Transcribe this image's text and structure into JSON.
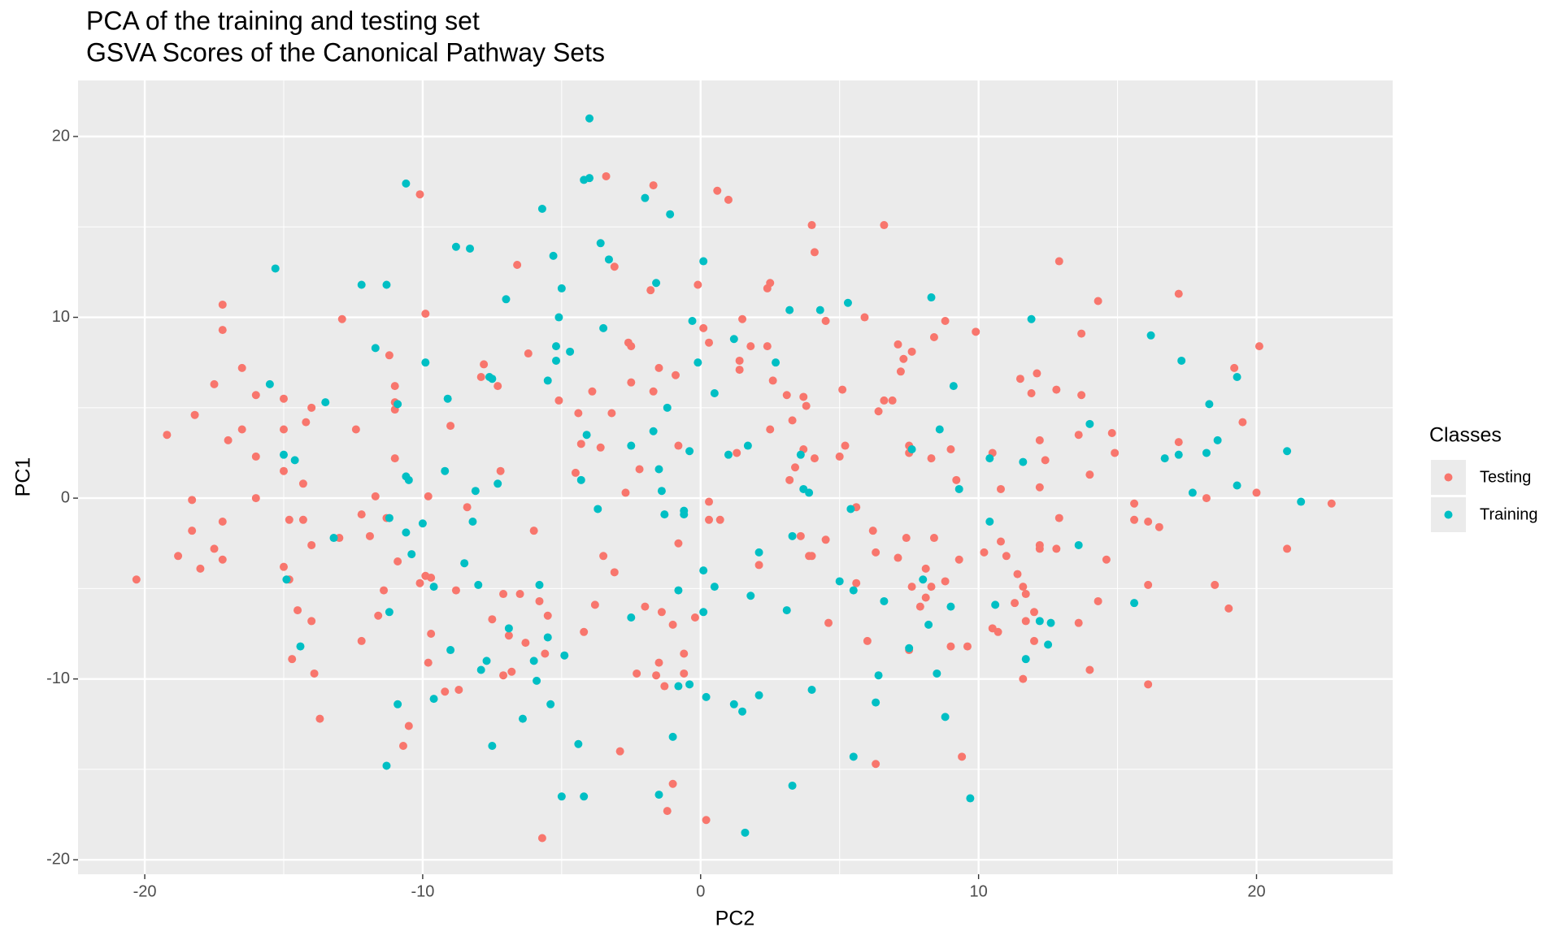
{
  "chart_data": {
    "type": "scatter",
    "title": "PCA of the training and testing set",
    "subtitle": "GSVA Scores of the Canonical Pathway Sets",
    "x_label": "PC2",
    "y_label": "PC1",
    "legend_title": "Classes",
    "legend_position": "right",
    "xlim": [
      -22.4,
      24.9
    ],
    "ylim": [
      -20.8,
      23.1
    ],
    "xticks": [
      -20,
      -10,
      0,
      10,
      20
    ],
    "yticks": [
      -20,
      -10,
      0,
      10,
      20
    ],
    "grid": true,
    "series": [
      {
        "name": "Testing",
        "color": "#F8766D",
        "x": [
          -20.3,
          -19.2,
          -18.8,
          -18.3,
          -18.3,
          -18.2,
          -18,
          -17.5,
          -17.5,
          -17.2,
          -17.2,
          -17.2,
          -17.2,
          -17,
          -16.5,
          -16.5,
          -16,
          -16,
          -16,
          -15,
          -15,
          -15,
          -15,
          -14.8,
          -14.8,
          -14.7,
          -14.5,
          -14.3,
          -14.3,
          -14.2,
          -14,
          -14,
          -14,
          -13.9,
          -13.7,
          -13,
          -12.9,
          -12.4,
          -12.2,
          -12.2,
          -11.9,
          -11.7,
          -11.6,
          -11.4,
          -11.3,
          -11.2,
          -11,
          -11,
          -11,
          -11,
          -10.9,
          -10.7,
          -10.5,
          -9.2,
          -10.1,
          -9.9,
          -9.9,
          -10.1,
          -9.8,
          -9.7,
          -9.7,
          -9.8,
          -9,
          -8.8,
          -8.7,
          -8.4,
          -7.8,
          -7.9,
          -7.5,
          -7.3,
          -7.2,
          -7.1,
          -7.1,
          -6.9,
          -6.8,
          -6.6,
          -6.5,
          -6.3,
          -6.2,
          -6,
          -5.8,
          -5.7,
          -5.6,
          -5.5,
          -5.1,
          -4.4,
          -4.5,
          -4.3,
          -4.2,
          -3.9,
          -3.8,
          -3.6,
          -3.5,
          -3.4,
          -3.2,
          -3.1,
          -3.1,
          -2.9,
          -2.7,
          -2.6,
          -2.5,
          -2.5,
          -2.3,
          -2.2,
          -2,
          -1.8,
          -1.7,
          -1.7,
          -1.6,
          -1.5,
          -1.5,
          -1.4,
          -1.3,
          -1.2,
          -1,
          -1,
          -0.9,
          -0.8,
          -0.8,
          -0.6,
          -0.6,
          -0.2,
          -0.1,
          0.1,
          0.3,
          0.3,
          0.3,
          0.2,
          0.6,
          0.7,
          1,
          1.4,
          1.4,
          1.3,
          1.5,
          1.8,
          2.1,
          2.4,
          2.4,
          2.5,
          2.5,
          2.6,
          3.1,
          3.2,
          3.3,
          3.4,
          3.6,
          3.7,
          3.7,
          3.8,
          3.9,
          4,
          4.1,
          4,
          4.1,
          4.5,
          4.5,
          4.6,
          5.1,
          5,
          5.2,
          5.6,
          5.6,
          5.9,
          6,
          6.2,
          6.3,
          6.3,
          6.4,
          6.6,
          6.6,
          6.9,
          7.1,
          7.2,
          7.3,
          7.1,
          7.4,
          7.5,
          7.5,
          7.6,
          7.6,
          7.5,
          7.9,
          8.1,
          8.1,
          8.3,
          8.3,
          8.4,
          8.4,
          8.8,
          8.8,
          9,
          9,
          9.2,
          9.3,
          9.4,
          9.6,
          9.9,
          10.2,
          10.5,
          10.5,
          10.7,
          10.8,
          10.8,
          11,
          11.3,
          11.4,
          11.5,
          11.6,
          11.6,
          11.7,
          11.7,
          11.9,
          12,
          12,
          12.1,
          12.2,
          12.2,
          12.2,
          12.2,
          12.4,
          12.8,
          12.8,
          12.9,
          12.9,
          13.6,
          13.6,
          13.7,
          13.7,
          14,
          14,
          14.3,
          14.3,
          14.6,
          14.8,
          14.9,
          15.6,
          15.6,
          16.1,
          16.1,
          16.1,
          16.5,
          17.2,
          17.2,
          18.2,
          18.5,
          19,
          19.2,
          19.5,
          20,
          20.1,
          21.1,
          22.7
        ],
        "values": [
          -4.5,
          3.5,
          -3.2,
          -0.1,
          -1.8,
          4.6,
          -3.9,
          6.3,
          -2.8,
          10.7,
          9.3,
          -1.3,
          -3.4,
          3.2,
          3.8,
          7.2,
          5.7,
          2.3,
          0,
          5.5,
          3.8,
          1.5,
          -3.8,
          -1.2,
          -4.5,
          -8.9,
          -6.2,
          0.8,
          -1.2,
          4.2,
          5,
          -2.6,
          -6.8,
          -9.7,
          -12.2,
          -2.2,
          9.9,
          3.8,
          -0.9,
          -7.9,
          -2.1,
          0.1,
          -6.5,
          -5.1,
          -1.1,
          7.9,
          6.2,
          5.3,
          4.9,
          2.2,
          -3.5,
          -13.7,
          -12.6,
          -10.7,
          16.8,
          10.2,
          -4.3,
          -4.7,
          0.1,
          -4.4,
          -7.5,
          -9.1,
          4,
          -5.1,
          -10.6,
          -0.5,
          7.4,
          6.7,
          -6.7,
          6.2,
          1.5,
          -5.3,
          -9.8,
          -7.6,
          -9.6,
          12.9,
          -5.3,
          -8,
          8,
          -1.8,
          -5.7,
          -18.8,
          -8.6,
          -6.5,
          5.4,
          4.7,
          1.4,
          3,
          -7.4,
          5.9,
          -5.9,
          2.8,
          -3.2,
          17.8,
          4.7,
          -4.1,
          12.8,
          -14,
          0.3,
          8.6,
          6.4,
          8.4,
          -9.7,
          1.6,
          -6,
          11.5,
          17.3,
          5.9,
          -9.8,
          7.2,
          -9.1,
          -6.3,
          -10.4,
          -17.3,
          -15.8,
          -7,
          6.8,
          -2.5,
          2.9,
          -8.6,
          -9.7,
          -6.6,
          11.8,
          9.4,
          8.6,
          -0.2,
          -1.2,
          -17.8,
          17,
          -1.2,
          16.5,
          7.6,
          7.1,
          2.5,
          9.9,
          8.4,
          -3.7,
          8.4,
          11.6,
          11.9,
          3.8,
          6.5,
          5.7,
          1,
          4.3,
          1.7,
          -2.1,
          2.7,
          5.6,
          5.1,
          -3.2,
          15.1,
          13.6,
          -3.2,
          2.2,
          -2.3,
          9.8,
          -6.9,
          6,
          2.3,
          2.9,
          -0.5,
          -4.7,
          10,
          -7.9,
          -1.8,
          -3,
          -14.7,
          4.8,
          5.4,
          15.1,
          5.4,
          8.5,
          7,
          7.7,
          -3.3,
          -2.2,
          2.9,
          2.5,
          8.1,
          -4.9,
          -8.4,
          -6,
          -3.9,
          -5.5,
          2.2,
          -4.9,
          8.9,
          -2.2,
          9.8,
          -4.6,
          2.7,
          -8.2,
          1,
          -3.4,
          -14.3,
          -8.2,
          9.2,
          -3,
          2.5,
          -7.2,
          -7.4,
          -2.4,
          0.5,
          -3.2,
          -5.8,
          -4.2,
          6.6,
          -4.9,
          -10,
          -5.3,
          -6.8,
          5.8,
          -7.9,
          -6.3,
          6.9,
          -2.6,
          -2.8,
          0.6,
          3.2,
          2.1,
          -2.8,
          6,
          13.1,
          -1.1,
          3.5,
          -6.9,
          5.7,
          9.1,
          1.3,
          -9.5,
          10.9,
          -5.7,
          -3.4,
          3.6,
          2.5,
          -0.3,
          -1.2,
          -1.3,
          -4.8,
          -10.3,
          -1.6,
          3.1,
          11.3,
          0,
          -4.8,
          -6.1,
          7.2,
          4.2,
          0.3,
          8.4,
          -2.8,
          -0.3
        ]
      },
      {
        "name": "Training",
        "color": "#00BFC4",
        "x": [
          -15.5,
          -15.3,
          -15,
          -14.9,
          -14.6,
          -14.4,
          -13.5,
          -13.2,
          -12.2,
          -11.7,
          -11.3,
          -11.3,
          -11.2,
          -11.2,
          -10.9,
          -10.9,
          -10.6,
          -10.6,
          -10.5,
          -10.6,
          -10.4,
          -9.9,
          -10,
          -9.6,
          -9.6,
          -9.2,
          -9.1,
          -9,
          -8.8,
          -8.5,
          -8.3,
          -8.2,
          -8.1,
          -8,
          -7.9,
          -7.7,
          -7.6,
          -7.5,
          -7.5,
          -7.3,
          -7,
          -6.9,
          -6.4,
          -6,
          -5.9,
          -5.8,
          -5.7,
          -5.5,
          -5.5,
          -5.4,
          -5.3,
          -5.2,
          -5.2,
          -5.1,
          -5,
          -5,
          -4.9,
          -4.7,
          -4.4,
          -4.3,
          -4.2,
          -4.2,
          -4.1,
          -4,
          -4,
          -3.7,
          -3.6,
          -3.5,
          -3.3,
          -2.5,
          -2.5,
          -2,
          -1.7,
          -1.6,
          -1.5,
          -1.5,
          -1.4,
          -1.3,
          -1.2,
          -1.1,
          -1,
          -0.8,
          -0.8,
          -0.6,
          -0.6,
          -0.4,
          -0.4,
          -0.3,
          -0.1,
          0.1,
          0.1,
          0.1,
          0.2,
          0.5,
          0.5,
          1,
          1.2,
          1.2,
          1.5,
          1.6,
          1.7,
          1.8,
          2.1,
          2.1,
          2.7,
          3.1,
          3.2,
          3.3,
          3.3,
          3.6,
          3.7,
          3.9,
          4,
          4.3,
          5,
          5.3,
          5.4,
          5.5,
          5.5,
          6.3,
          6.4,
          6.6,
          7.5,
          7.6,
          8,
          8.2,
          8.3,
          8.5,
          8.6,
          8.8,
          9,
          9.1,
          9.3,
          9.7,
          10.4,
          10.4,
          10.6,
          11.6,
          11.7,
          11.9,
          12.2,
          12.5,
          12.6,
          13.6,
          14,
          15.6,
          16.2,
          16.7,
          17.3,
          17.2,
          17.7,
          18.2,
          18.3,
          18.6,
          19.3,
          19.3,
          21.1,
          21.6
        ],
        "values": [
          6.3,
          12.7,
          2.4,
          -4.5,
          2.1,
          -8.2,
          5.3,
          -2.2,
          11.8,
          8.3,
          11.8,
          -14.8,
          -6.3,
          -1.1,
          5.2,
          -11.4,
          17.4,
          1.2,
          1,
          -1.9,
          -3.1,
          7.5,
          -1.4,
          -4.9,
          -11.1,
          1.5,
          5.5,
          -8.4,
          13.9,
          -3.6,
          13.8,
          -1.3,
          0.4,
          -4.8,
          -9.5,
          -9,
          6.7,
          6.6,
          -13.7,
          0.8,
          11,
          -7.2,
          -12.2,
          -9,
          -10.1,
          -4.8,
          16,
          6.5,
          -7.7,
          -11.4,
          13.4,
          8.4,
          7.6,
          10,
          11.6,
          -16.5,
          -8.7,
          8.1,
          -13.6,
          1,
          17.6,
          -16.5,
          3.5,
          17.7,
          21,
          -0.6,
          14.1,
          9.4,
          13.2,
          -6.6,
          2.9,
          16.6,
          3.7,
          11.9,
          1.6,
          -16.4,
          0.4,
          -0.9,
          5,
          15.7,
          -13.2,
          -5.1,
          -10.4,
          -0.9,
          -0.7,
          2.6,
          -10.3,
          9.8,
          7.5,
          13.1,
          -4,
          -6.3,
          -11,
          5.8,
          -4.9,
          2.4,
          8.8,
          -11.4,
          -11.8,
          -18.5,
          2.9,
          -5.4,
          -3,
          -10.9,
          7.5,
          -6.2,
          10.4,
          -2.1,
          -15.9,
          2.4,
          0.5,
          0.3,
          -10.6,
          10.4,
          -4.6,
          10.8,
          -0.6,
          -5.1,
          -14.3,
          -11.3,
          -9.8,
          -5.7,
          -8.3,
          2.7,
          -4.5,
          -7,
          11.1,
          -9.7,
          3.8,
          -12.1,
          -6,
          6.2,
          0.5,
          -16.6,
          2.2,
          -1.3,
          -5.9,
          2,
          -8.9,
          9.9,
          -6.8,
          -8.1,
          -6.9,
          -2.6,
          4.1,
          -5.8,
          9,
          2.2,
          7.6,
          2.4,
          0.3,
          2.5,
          5.2,
          3.2,
          6.7,
          0.7,
          2.6,
          -0.2
        ]
      }
    ]
  }
}
